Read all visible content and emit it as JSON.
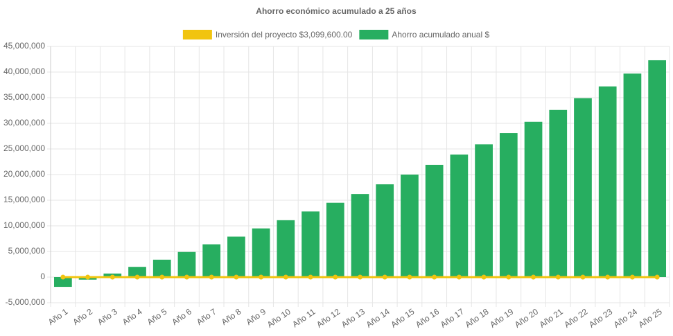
{
  "chart_data": {
    "type": "bar",
    "title": "Ahorro económico acumulado a 25 años",
    "categories": [
      "Año 1",
      "Año 2",
      "Año 3",
      "Año 4",
      "Año 5",
      "Año 6",
      "Año 7",
      "Año 8",
      "Año 9",
      "Año 10",
      "Año 11",
      "Año 12",
      "Año 13",
      "Año 14",
      "Año 15",
      "Año 16",
      "Año 17",
      "Año 18",
      "Año 19",
      "Año 20",
      "Año 21",
      "Año 22",
      "Año 23",
      "Año 24",
      "Año 25"
    ],
    "series": [
      {
        "name": "Inversión del proyecto $3,099,600.00",
        "type": "line",
        "color": "#f1c40f",
        "values": [
          0,
          0,
          0,
          0,
          0,
          0,
          0,
          0,
          0,
          0,
          0,
          0,
          0,
          0,
          0,
          0,
          0,
          0,
          0,
          0,
          0,
          0,
          0,
          0,
          0
        ]
      },
      {
        "name": "Ahorro acumulado anual $",
        "type": "bar",
        "color": "#27ae60",
        "values": [
          -1900000,
          -500000,
          700000,
          2000000,
          3400000,
          4900000,
          6400000,
          7900000,
          9500000,
          11100000,
          12800000,
          14500000,
          16200000,
          18100000,
          20000000,
          21900000,
          23900000,
          25900000,
          28100000,
          30300000,
          32600000,
          34900000,
          37200000,
          39700000,
          42300000
        ]
      }
    ],
    "ylim": [
      -5000000,
      45000000
    ],
    "yticks": [
      {
        "value": -5000000,
        "label": "-5,000,000"
      },
      {
        "value": 0,
        "label": "0"
      },
      {
        "value": 5000000,
        "label": "5,000,000"
      },
      {
        "value": 10000000,
        "label": "10,000,000"
      },
      {
        "value": 15000000,
        "label": "15,000,000"
      },
      {
        "value": 20000000,
        "label": "20,000,000"
      },
      {
        "value": 25000000,
        "label": "25,000,000"
      },
      {
        "value": 30000000,
        "label": "30,000,000"
      },
      {
        "value": 35000000,
        "label": "35,000,000"
      },
      {
        "value": 40000000,
        "label": "40,000,000"
      },
      {
        "value": 45000000,
        "label": "45,000,000"
      }
    ],
    "grid": true
  }
}
